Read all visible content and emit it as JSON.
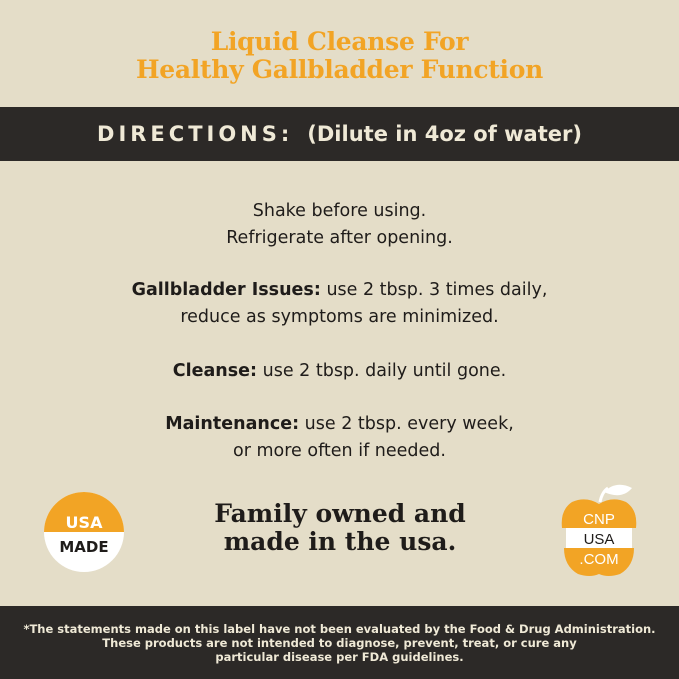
{
  "title": {
    "line1": "Liquid Cleanse For",
    "line2": "Healthy Gallbladder Function"
  },
  "directions": {
    "label": "DIRECTIONS:",
    "note": "(Dilute in 4oz of water)"
  },
  "instructions": {
    "general": [
      "Shake before using.",
      "Refrigerate after opening."
    ],
    "gallbladder": {
      "label": "Gallbladder Issues:",
      "text1": "use 2 tbsp. 3 times daily,",
      "text2": "reduce as symptoms are minimized."
    },
    "cleanse": {
      "label": "Cleanse:",
      "text": "use 2 tbsp. daily until gone."
    },
    "maintenance": {
      "label": "Maintenance:",
      "text1": "use 2 tbsp. every week,",
      "text2": "or more often if needed."
    }
  },
  "badge_usa": {
    "top": "USA",
    "bottom": "MADE"
  },
  "family": {
    "line1": "Family owned and",
    "line2": "made in the usa."
  },
  "cnp_logo": {
    "line1": "CNP",
    "line2": "USA",
    "line3": ".COM"
  },
  "disclaimer": {
    "line1": "*The statements made on this label have not been evaluated by the Food & Drug Administration.",
    "line2": "These products are not intended to diagnose, prevent, treat, or cure any",
    "line3": "particular disease per FDA guidelines."
  },
  "colors": {
    "accent": "#f2a425",
    "dark": "#2c2927",
    "background": "#e4ddc8"
  }
}
